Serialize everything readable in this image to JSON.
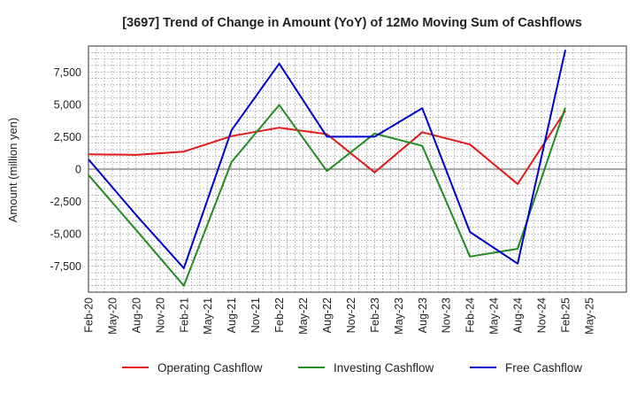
{
  "chart_data": {
    "type": "line",
    "title": "[3697]  Trend of Change in Amount (YoY) of 12Mo Moving Sum of Cashflows",
    "xlabel": "",
    "ylabel": "Amount (million yen)",
    "ylim": [
      -9500,
      9500
    ],
    "yticks": [
      7500,
      5000,
      2500,
      0,
      -2500,
      -5000,
      -7500
    ],
    "ytick_labels": [
      "7,500",
      "5,000",
      "2,500",
      "0",
      "-2,500",
      "-5,000",
      "-7,500"
    ],
    "xtick_labels": [
      "Feb-20",
      "May-20",
      "Aug-20",
      "Nov-20",
      "Feb-21",
      "May-21",
      "Aug-21",
      "Nov-21",
      "Feb-22",
      "May-22",
      "Aug-22",
      "Nov-22",
      "Feb-23",
      "May-23",
      "Aug-23",
      "Nov-23",
      "Feb-24",
      "May-24",
      "Aug-24",
      "Nov-24",
      "Feb-25",
      "May-25"
    ],
    "grid": true,
    "legend_position": "bottom",
    "series": [
      {
        "name": "Operating Cashflow",
        "color": "#e31a1c",
        "x_index": [
          0,
          2,
          4,
          6,
          8,
          10,
          12,
          14,
          16,
          18,
          20
        ],
        "values": [
          1150,
          1100,
          1350,
          2550,
          3200,
          2700,
          -250,
          2850,
          1900,
          -1150,
          4500
        ]
      },
      {
        "name": "Investing Cashflow",
        "color": "#228b22",
        "x_index": [
          0,
          2,
          4,
          6,
          8,
          10,
          12,
          14,
          16,
          18,
          20
        ],
        "values": [
          -450,
          -4700,
          -9000,
          550,
          4950,
          -150,
          2750,
          1800,
          -6750,
          -6150,
          4750
        ]
      },
      {
        "name": "Free Cashflow",
        "color": "#0000cd",
        "x_index": [
          0,
          2,
          4,
          6,
          8,
          10,
          12,
          14,
          16,
          18,
          20
        ],
        "values": [
          750,
          -3550,
          -7650,
          3000,
          8150,
          2500,
          2500,
          4700,
          -4850,
          -7300,
          9200
        ]
      }
    ]
  }
}
